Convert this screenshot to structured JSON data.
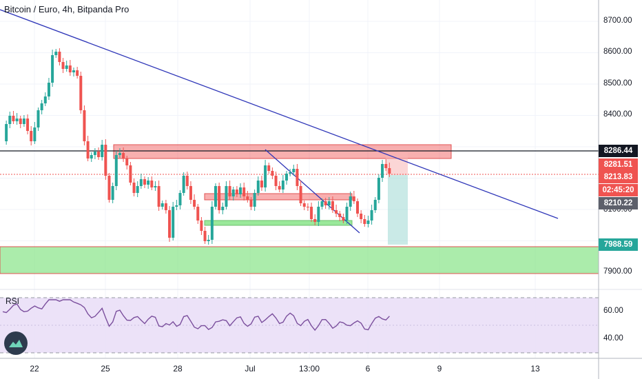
{
  "header": {
    "title": "Bitcoin / Euro, 4h, Bitpanda Pro"
  },
  "rsi": {
    "label": "RSI",
    "levels": [
      "60.00",
      "40.00"
    ]
  },
  "price_axis": {
    "ticks": [
      "8700.00",
      "8600.00",
      "8500.00",
      "8400.00",
      "8100.00",
      "7900.00"
    ]
  },
  "price_tags": [
    {
      "value": "8286.44",
      "color": "#131722"
    },
    {
      "value": "8281.51",
      "color": "#ef5350"
    },
    {
      "value": "8213.83",
      "color": "#ef5350"
    },
    {
      "value": "02:45:20",
      "color": "#ef5350"
    },
    {
      "value": "8210.22",
      "color": "#5d606b"
    },
    {
      "value": "7988.59",
      "color": "#26a69a"
    }
  ],
  "time_axis": {
    "labels": [
      "22",
      "25",
      "28",
      "Jul",
      "13:00",
      "6",
      "9",
      "13"
    ]
  },
  "colors": {
    "up": "#26a69a",
    "down": "#ef5350",
    "trendline": "#2e36b8",
    "resistance": "#f26d6d",
    "support": "#8fe68f",
    "rsi_line": "#7b4f9d",
    "rsi_band": "#e9ddf7"
  },
  "icons": {
    "logo": "tradingview-logo-icon"
  }
}
